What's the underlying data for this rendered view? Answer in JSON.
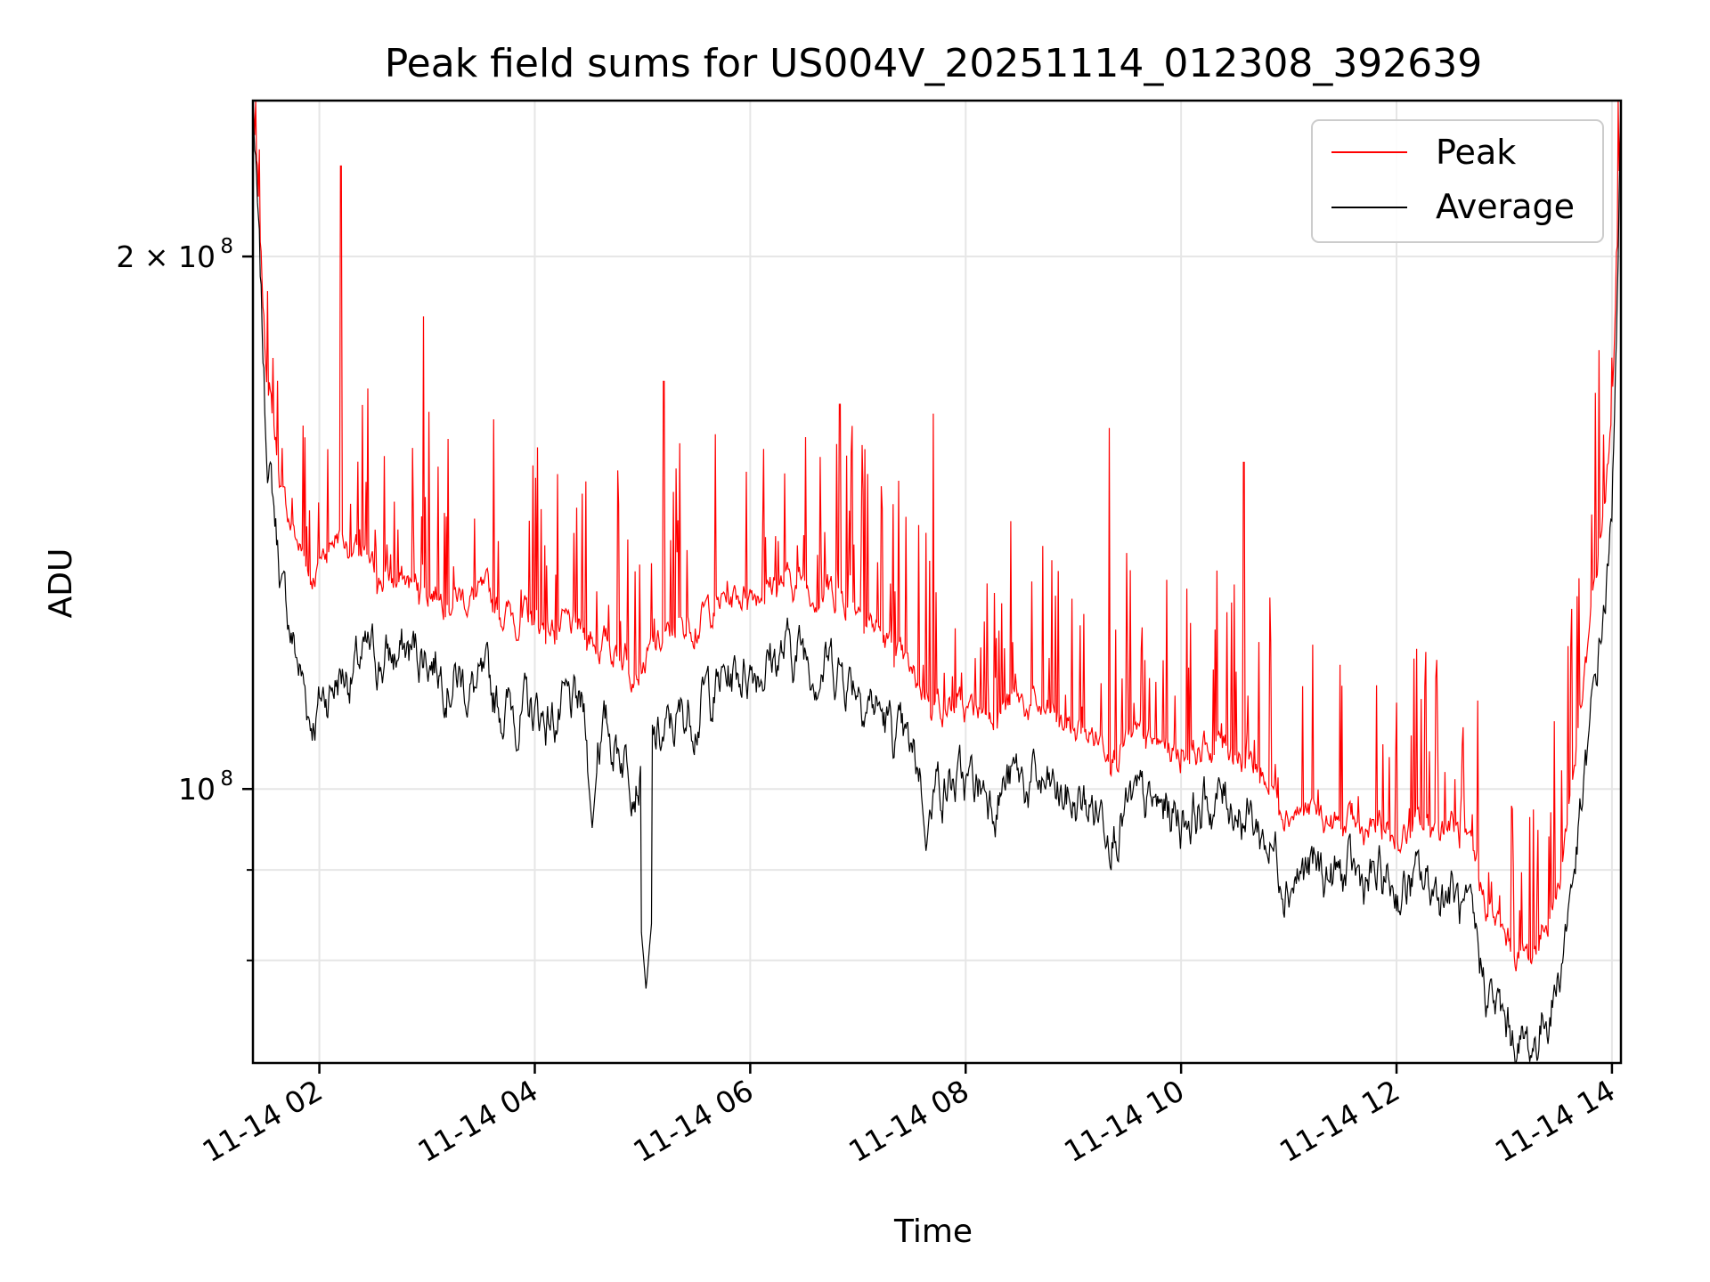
{
  "chart_data": {
    "type": "line",
    "title": "Peak field sums for US004V_20251114_012308_392639",
    "xlabel": "Time",
    "ylabel": "ADU",
    "yscale": "log",
    "ylim": [
      70000000,
      245000000
    ],
    "xlim": [
      "2025-11-14 01:23",
      "2025-11-14 14:05"
    ],
    "grid": true,
    "legend_position": "top-right",
    "x_ticks": [
      {
        "t": "2025-11-14 02:00",
        "label": "11-14 02"
      },
      {
        "t": "2025-11-14 04:00",
        "label": "11-14 04"
      },
      {
        "t": "2025-11-14 06:00",
        "label": "11-14 06"
      },
      {
        "t": "2025-11-14 08:00",
        "label": "11-14 08"
      },
      {
        "t": "2025-11-14 10:00",
        "label": "11-14 10"
      },
      {
        "t": "2025-11-14 12:00",
        "label": "11-14 12"
      },
      {
        "t": "2025-11-14 14:00",
        "label": "11-14 14"
      }
    ],
    "y_ticks": [
      {
        "value": 200000000,
        "label": "2 × 10",
        "exp": "8"
      },
      {
        "value": 100000000,
        "label": "10",
        "exp": "8"
      }
    ],
    "y_minor_ticks": [
      90000000,
      80000000
    ],
    "series": [
      {
        "name": "Peak",
        "color": "#ff0000",
        "x": [
          "2025-11-14 01:23",
          "2025-11-14 01:30",
          "2025-11-14 01:40",
          "2025-11-14 01:55",
          "2025-11-14 02:10",
          "2025-11-14 02:30",
          "2025-11-14 03:00",
          "2025-11-14 03:30",
          "2025-11-14 04:00",
          "2025-11-14 04:30",
          "2025-11-14 05:00",
          "2025-11-14 05:30",
          "2025-11-14 06:00",
          "2025-11-14 06:30",
          "2025-11-14 07:00",
          "2025-11-14 07:30",
          "2025-11-14 08:00",
          "2025-11-14 08:30",
          "2025-11-14 09:00",
          "2025-11-14 09:30",
          "2025-11-14 10:00",
          "2025-11-14 10:30",
          "2025-11-14 11:00",
          "2025-11-14 11:30",
          "2025-11-14 12:00",
          "2025-11-14 12:30",
          "2025-11-14 13:00",
          "2025-11-14 13:15",
          "2025-11-14 13:30",
          "2025-11-14 13:45",
          "2025-11-14 14:00",
          "2025-11-14 14:05"
        ],
        "values": [
          245000000,
          175000000,
          145000000,
          132000000,
          140000000,
          132000000,
          130000000,
          128000000,
          124000000,
          122000000,
          118000000,
          125000000,
          130000000,
          131000000,
          128000000,
          115000000,
          110000000,
          112000000,
          108000000,
          106000000,
          105000000,
          106000000,
          98000000,
          95000000,
          94000000,
          96000000,
          82000000,
          80000000,
          88000000,
          115000000,
          160000000,
          245000000
        ]
      },
      {
        "name": "Average",
        "color": "#000000",
        "x": [
          "2025-11-14 01:23",
          "2025-11-14 01:30",
          "2025-11-14 01:40",
          "2025-11-14 01:55",
          "2025-11-14 02:10",
          "2025-11-14 02:30",
          "2025-11-14 03:00",
          "2025-11-14 03:30",
          "2025-11-14 04:00",
          "2025-11-14 04:30",
          "2025-11-14 05:00",
          "2025-11-14 05:30",
          "2025-11-14 06:00",
          "2025-11-14 06:30",
          "2025-11-14 07:00",
          "2025-11-14 07:30",
          "2025-11-14 08:00",
          "2025-11-14 08:30",
          "2025-11-14 09:00",
          "2025-11-14 09:30",
          "2025-11-14 10:00",
          "2025-11-14 10:30",
          "2025-11-14 11:00",
          "2025-11-14 11:30",
          "2025-11-14 12:00",
          "2025-11-14 12:30",
          "2025-11-14 13:00",
          "2025-11-14 13:15",
          "2025-11-14 13:30",
          "2025-11-14 13:45",
          "2025-11-14 14:00",
          "2025-11-14 14:05"
        ],
        "values": [
          245000000,
          160000000,
          128000000,
          110000000,
          116000000,
          118000000,
          120000000,
          113000000,
          110000000,
          110000000,
          103000000,
          112000000,
          118000000,
          120000000,
          116000000,
          103000000,
          100000000,
          101000000,
          98000000,
          97000000,
          97000000,
          99000000,
          90000000,
          89000000,
          88000000,
          88000000,
          73000000,
          71000000,
          78000000,
          100000000,
          140000000,
          245000000
        ]
      }
    ],
    "spikes": [
      {
        "t": "2025-11-14 02:12",
        "value": 225000000
      },
      {
        "t": "2025-11-14 02:58",
        "value": 185000000
      },
      {
        "t": "2025-11-14 05:12",
        "value": 170000000
      },
      {
        "t": "2025-11-14 06:50",
        "value": 165000000
      },
      {
        "t": "2025-11-14 07:42",
        "value": 163000000
      },
      {
        "t": "2025-11-14 09:20",
        "value": 160000000
      },
      {
        "t": "2025-11-14 10:35",
        "value": 153000000
      }
    ],
    "dips": [
      {
        "t": "2025-11-14 04:32",
        "value": 95000000
      },
      {
        "t": "2025-11-14 05:02",
        "value": 77000000
      },
      {
        "t": "2025-11-14 07:38",
        "value": 92000000
      }
    ]
  }
}
